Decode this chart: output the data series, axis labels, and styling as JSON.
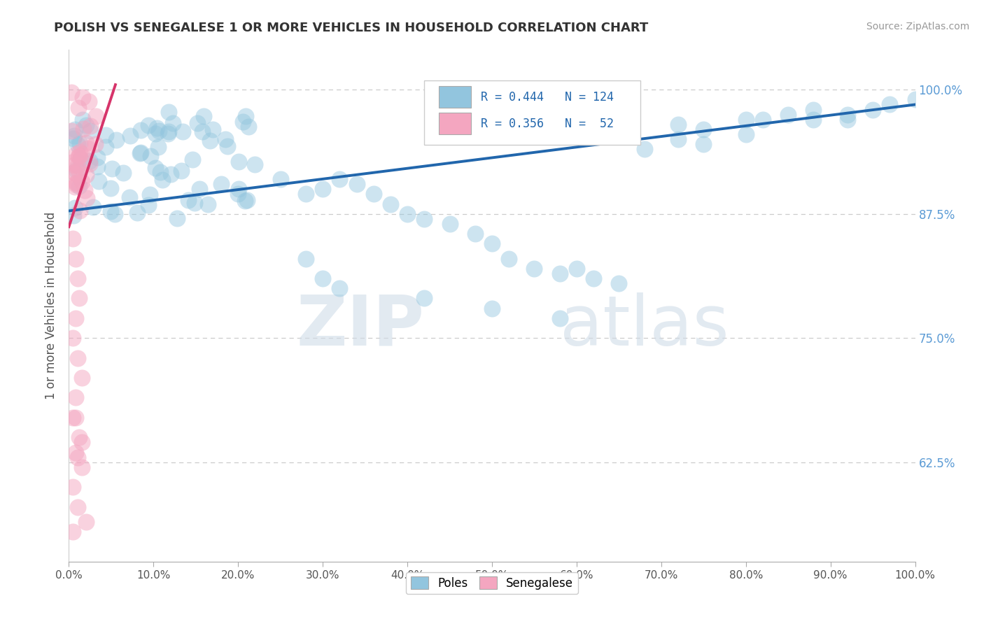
{
  "title": "POLISH VS SENEGALESE 1 OR MORE VEHICLES IN HOUSEHOLD CORRELATION CHART",
  "source": "Source: ZipAtlas.com",
  "ylabel": "1 or more Vehicles in Household",
  "watermark_zip": "ZIP",
  "watermark_atlas": "atlas",
  "legend_blue_label": "Poles",
  "legend_pink_label": "Senegalese",
  "blue_R": 0.444,
  "blue_N": 124,
  "pink_R": 0.356,
  "pink_N": 52,
  "xlim": [
    0.0,
    1.0
  ],
  "ylim": [
    0.525,
    1.04
  ],
  "ytick_vals": [
    0.625,
    0.75,
    0.875,
    1.0
  ],
  "ytick_labels": [
    "62.5%",
    "75.0%",
    "87.5%",
    "100.0%"
  ],
  "xtick_vals": [
    0.0,
    0.1,
    0.2,
    0.3,
    0.4,
    0.5,
    0.6,
    0.7,
    0.8,
    0.9,
    1.0
  ],
  "xtick_labels": [
    "0.0%",
    "10.0%",
    "20.0%",
    "30.0%",
    "40.0%",
    "50.0%",
    "60.0%",
    "70.0%",
    "80.0%",
    "90.0%",
    "100.0%"
  ],
  "blue_color": "#92c5de",
  "blue_line_color": "#2166ac",
  "pink_color": "#f4a6c0",
  "pink_line_color": "#d6346a",
  "blue_trend_x0": 0.0,
  "blue_trend_y0": 0.878,
  "blue_trend_x1": 1.0,
  "blue_trend_y1": 0.985,
  "pink_trend_x0": 0.0,
  "pink_trend_y0": 0.862,
  "pink_trend_x1": 0.055,
  "pink_trend_y1": 1.005,
  "background_color": "#ffffff",
  "grid_color": "#cccccc",
  "title_color": "#333333",
  "right_tick_color": "#5b9bd5",
  "axis_label_color": "#555555"
}
